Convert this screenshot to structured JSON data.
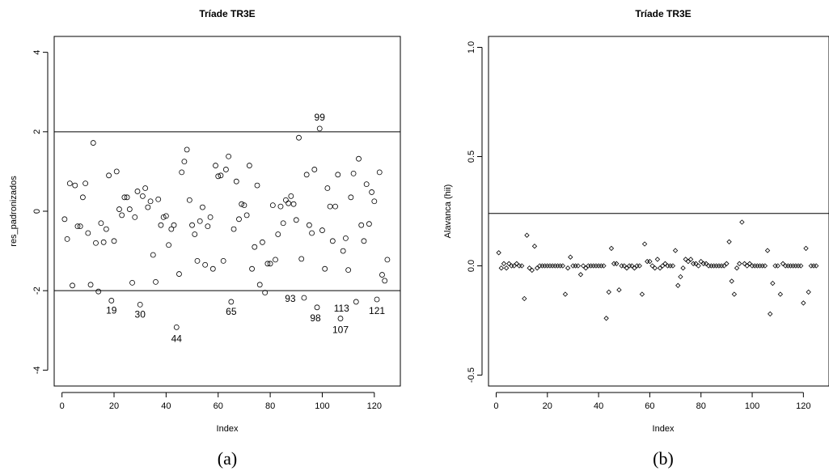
{
  "chart_data": [
    {
      "type": "scatter",
      "title": "Tríade TR3E",
      "xlabel": "Index",
      "ylabel": "res_padronizados",
      "caption": "(a)",
      "xlim": [
        -3,
        130
      ],
      "ylim": [
        -4.4,
        4.4
      ],
      "xticks": [
        "0",
        "20",
        "40",
        "60",
        "80",
        "100",
        "120"
      ],
      "yticks": [
        "-4",
        "-2",
        "0",
        "2",
        "4"
      ],
      "hlines": [
        2,
        -2
      ],
      "points": [
        [
          1,
          -0.2
        ],
        [
          2,
          -0.7
        ],
        [
          3,
          0.7
        ],
        [
          4,
          -1.87
        ],
        [
          5,
          0.65
        ],
        [
          6,
          -0.38
        ],
        [
          7,
          -0.38
        ],
        [
          8,
          0.35
        ],
        [
          9,
          0.7
        ],
        [
          10,
          -0.55
        ],
        [
          11,
          -1.85
        ],
        [
          12,
          1.72
        ],
        [
          13,
          -0.8
        ],
        [
          14,
          -2.02
        ],
        [
          15,
          -0.3
        ],
        [
          16,
          -0.78
        ],
        [
          17,
          -0.45
        ],
        [
          18,
          0.9
        ],
        [
          19,
          -2.25
        ],
        [
          20,
          -0.75
        ],
        [
          21,
          1.0
        ],
        [
          22,
          0.05
        ],
        [
          23,
          -0.1
        ],
        [
          24,
          0.35
        ],
        [
          25,
          0.35
        ],
        [
          26,
          0.05
        ],
        [
          27,
          -1.8
        ],
        [
          28,
          -0.15
        ],
        [
          29,
          0.5
        ],
        [
          30,
          -2.35
        ],
        [
          31,
          0.38
        ],
        [
          32,
          0.58
        ],
        [
          33,
          0.1
        ],
        [
          34,
          0.25
        ],
        [
          35,
          -1.1
        ],
        [
          36,
          -1.78
        ],
        [
          37,
          0.3
        ],
        [
          38,
          -0.35
        ],
        [
          39,
          -0.15
        ],
        [
          40,
          -0.12
        ],
        [
          41,
          -0.85
        ],
        [
          42,
          -0.45
        ],
        [
          43,
          -0.35
        ],
        [
          44,
          -2.92
        ],
        [
          45,
          -1.58
        ],
        [
          46,
          0.98
        ],
        [
          47,
          1.25
        ],
        [
          48,
          1.55
        ],
        [
          49,
          0.28
        ],
        [
          50,
          -0.35
        ],
        [
          51,
          -0.58
        ],
        [
          52,
          -1.25
        ],
        [
          53,
          -0.25
        ],
        [
          54,
          0.1
        ],
        [
          55,
          -1.35
        ],
        [
          56,
          -0.38
        ],
        [
          57,
          -0.15
        ],
        [
          58,
          -1.45
        ],
        [
          59,
          1.15
        ],
        [
          60,
          0.88
        ],
        [
          61,
          0.9
        ],
        [
          62,
          -1.25
        ],
        [
          63,
          1.05
        ],
        [
          64,
          1.38
        ],
        [
          65,
          -2.28
        ],
        [
          66,
          -0.45
        ],
        [
          67,
          0.75
        ],
        [
          68,
          -0.2
        ],
        [
          69,
          0.18
        ],
        [
          70,
          0.15
        ],
        [
          71,
          -0.1
        ],
        [
          72,
          1.15
        ],
        [
          73,
          -1.45
        ],
        [
          74,
          -0.9
        ],
        [
          75,
          0.65
        ],
        [
          76,
          -1.85
        ],
        [
          77,
          -0.78
        ],
        [
          78,
          -2.05
        ],
        [
          79,
          -1.32
        ],
        [
          80,
          -1.32
        ],
        [
          81,
          0.15
        ],
        [
          82,
          -1.22
        ],
        [
          83,
          -0.58
        ],
        [
          84,
          0.12
        ],
        [
          85,
          -0.3
        ],
        [
          86,
          0.28
        ],
        [
          87,
          0.2
        ],
        [
          88,
          0.38
        ],
        [
          89,
          0.18
        ],
        [
          90,
          -0.22
        ],
        [
          91,
          1.85
        ],
        [
          92,
          -1.2
        ],
        [
          93,
          -2.18
        ],
        [
          94,
          0.92
        ],
        [
          95,
          -0.35
        ],
        [
          96,
          -0.55
        ],
        [
          97,
          1.05
        ],
        [
          98,
          -2.42
        ],
        [
          99,
          2.08
        ],
        [
          100,
          -0.48
        ],
        [
          101,
          -1.45
        ],
        [
          102,
          0.58
        ],
        [
          103,
          0.12
        ],
        [
          104,
          -0.75
        ],
        [
          105,
          0.12
        ],
        [
          106,
          0.92
        ],
        [
          107,
          -2.7
        ],
        [
          108,
          -1.0
        ],
        [
          109,
          -0.68
        ],
        [
          110,
          -1.48
        ],
        [
          111,
          0.35
        ],
        [
          112,
          0.95
        ],
        [
          113,
          -2.28
        ],
        [
          114,
          1.32
        ],
        [
          115,
          -0.35
        ],
        [
          116,
          -0.75
        ],
        [
          117,
          0.68
        ],
        [
          118,
          -0.32
        ],
        [
          119,
          0.48
        ],
        [
          120,
          0.25
        ],
        [
          121,
          -2.22
        ],
        [
          122,
          0.98
        ],
        [
          123,
          -1.6
        ],
        [
          124,
          -1.75
        ],
        [
          125,
          -1.22
        ]
      ],
      "annotations": [
        {
          "text": "99",
          "index": 99
        },
        {
          "text": "19",
          "index": 19
        },
        {
          "text": "30",
          "index": 30
        },
        {
          "text": "44",
          "index": 44
        },
        {
          "text": "65",
          "index": 65
        },
        {
          "text": "93",
          "index": 93
        },
        {
          "text": "98",
          "index": 98
        },
        {
          "text": "107",
          "index": 107
        },
        {
          "text": "113",
          "index": 113
        },
        {
          "text": "121",
          "index": 121
        }
      ]
    },
    {
      "type": "scatter",
      "title": "Tríade TR3E",
      "xlabel": "Index",
      "ylabel": "Alavanca (hii)",
      "caption": "(b)",
      "xlim": [
        -3,
        130
      ],
      "ylim": [
        -0.55,
        1.05
      ],
      "xticks": [
        "0",
        "20",
        "40",
        "60",
        "80",
        "100",
        "120"
      ],
      "yticks": [
        "-0.5",
        "0.0",
        "0.5",
        "1.0"
      ],
      "hlines": [
        0.24
      ],
      "points": [
        [
          1,
          0.06
        ],
        [
          2,
          -0.01
        ],
        [
          3,
          0.01
        ],
        [
          4,
          -0.01
        ],
        [
          5,
          0.01
        ],
        [
          6,
          0.0
        ],
        [
          7,
          0.0
        ],
        [
          8,
          0.01
        ],
        [
          9,
          0.0
        ],
        [
          10,
          0.0
        ],
        [
          11,
          -0.15
        ],
        [
          12,
          0.14
        ],
        [
          13,
          -0.01
        ],
        [
          14,
          -0.02
        ],
        [
          15,
          0.09
        ],
        [
          16,
          -0.01
        ],
        [
          17,
          0.0
        ],
        [
          18,
          0.0
        ],
        [
          19,
          0.0
        ],
        [
          20,
          0.0
        ],
        [
          21,
          0.0
        ],
        [
          22,
          0.0
        ],
        [
          23,
          0.0
        ],
        [
          24,
          0.0
        ],
        [
          25,
          0.0
        ],
        [
          26,
          0.0
        ],
        [
          27,
          -0.13
        ],
        [
          28,
          -0.01
        ],
        [
          29,
          0.04
        ],
        [
          30,
          0.0
        ],
        [
          31,
          0.0
        ],
        [
          32,
          0.0
        ],
        [
          33,
          -0.04
        ],
        [
          34,
          0.0
        ],
        [
          35,
          -0.01
        ],
        [
          36,
          0.0
        ],
        [
          37,
          0.0
        ],
        [
          38,
          0.0
        ],
        [
          39,
          0.0
        ],
        [
          40,
          0.0
        ],
        [
          41,
          0.0
        ],
        [
          42,
          0.0
        ],
        [
          43,
          -0.24
        ],
        [
          44,
          -0.12
        ],
        [
          45,
          0.08
        ],
        [
          46,
          0.01
        ],
        [
          47,
          0.01
        ],
        [
          48,
          -0.11
        ],
        [
          49,
          0.0
        ],
        [
          50,
          0.0
        ],
        [
          51,
          -0.01
        ],
        [
          52,
          0.0
        ],
        [
          53,
          0.0
        ],
        [
          54,
          -0.01
        ],
        [
          55,
          0.0
        ],
        [
          56,
          0.0
        ],
        [
          57,
          -0.13
        ],
        [
          58,
          0.1
        ],
        [
          59,
          0.02
        ],
        [
          60,
          0.02
        ],
        [
          61,
          0.0
        ],
        [
          62,
          -0.01
        ],
        [
          63,
          0.03
        ],
        [
          64,
          -0.01
        ],
        [
          65,
          0.0
        ],
        [
          66,
          0.01
        ],
        [
          67,
          0.0
        ],
        [
          68,
          0.0
        ],
        [
          69,
          0.0
        ],
        [
          70,
          0.07
        ],
        [
          71,
          -0.09
        ],
        [
          72,
          -0.05
        ],
        [
          73,
          -0.01
        ],
        [
          74,
          0.03
        ],
        [
          75,
          0.02
        ],
        [
          76,
          0.03
        ],
        [
          77,
          0.01
        ],
        [
          78,
          0.01
        ],
        [
          79,
          0.0
        ],
        [
          80,
          0.02
        ],
        [
          81,
          0.01
        ],
        [
          82,
          0.01
        ],
        [
          83,
          0.0
        ],
        [
          84,
          0.0
        ],
        [
          85,
          0.0
        ],
        [
          86,
          0.0
        ],
        [
          87,
          0.0
        ],
        [
          88,
          0.0
        ],
        [
          89,
          0.0
        ],
        [
          90,
          0.01
        ],
        [
          91,
          0.11
        ],
        [
          92,
          -0.07
        ],
        [
          93,
          -0.13
        ],
        [
          94,
          -0.01
        ],
        [
          95,
          0.01
        ],
        [
          96,
          0.2
        ],
        [
          97,
          0.01
        ],
        [
          98,
          0.0
        ],
        [
          99,
          0.01
        ],
        [
          100,
          0.0
        ],
        [
          101,
          0.0
        ],
        [
          102,
          0.0
        ],
        [
          103,
          0.0
        ],
        [
          104,
          0.0
        ],
        [
          105,
          0.0
        ],
        [
          106,
          0.07
        ],
        [
          107,
          -0.22
        ],
        [
          108,
          -0.08
        ],
        [
          109,
          0.0
        ],
        [
          110,
          0.0
        ],
        [
          111,
          -0.13
        ],
        [
          112,
          0.01
        ],
        [
          113,
          0.0
        ],
        [
          114,
          0.0
        ],
        [
          115,
          0.0
        ],
        [
          116,
          0.0
        ],
        [
          117,
          0.0
        ],
        [
          118,
          0.0
        ],
        [
          119,
          0.0
        ],
        [
          120,
          -0.17
        ],
        [
          121,
          0.08
        ],
        [
          122,
          -0.12
        ],
        [
          123,
          0.0
        ],
        [
          124,
          0.0
        ],
        [
          125,
          0.0
        ]
      ],
      "annotations": []
    }
  ]
}
